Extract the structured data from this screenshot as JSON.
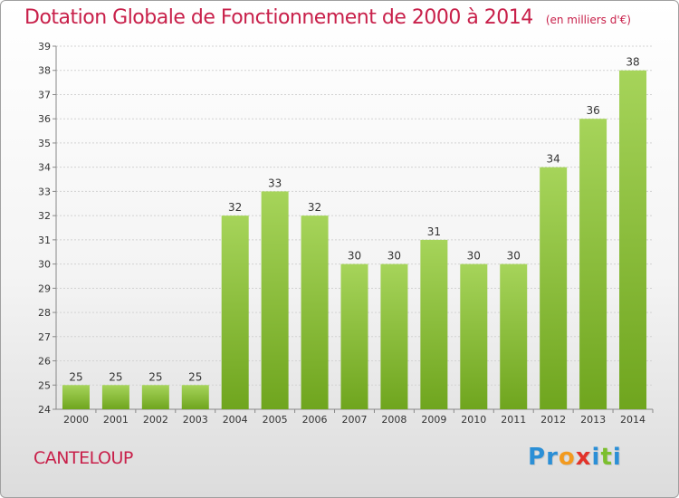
{
  "chart_data": {
    "type": "bar",
    "title": "Dotation Globale de Fonctionnement de 2000 à 2014",
    "subtitle": "(en milliers d'€)",
    "xlabel": "",
    "ylabel": "",
    "categories": [
      "2000",
      "2001",
      "2002",
      "2003",
      "2004",
      "2005",
      "2006",
      "2007",
      "2008",
      "2009",
      "2010",
      "2011",
      "2012",
      "2013",
      "2014"
    ],
    "values": [
      25,
      25,
      25,
      25,
      32,
      33,
      32,
      30,
      30,
      31,
      30,
      30,
      34,
      36,
      38
    ],
    "ylim": [
      24,
      39
    ],
    "yticks": [
      24,
      25,
      26,
      27,
      28,
      29,
      30,
      31,
      32,
      33,
      34,
      35,
      36,
      37,
      38,
      39
    ],
    "grid": true,
    "legend": "none",
    "bar_color_light": "#a6d45a",
    "bar_color_dark": "#6fa51e"
  },
  "footer": {
    "commune": "CANTELOUP",
    "logo_letters": [
      {
        "ch": "P",
        "color": "#2b8fd6"
      },
      {
        "ch": "r",
        "color": "#2b8fd6"
      },
      {
        "ch": "o",
        "color": "#f29a1f"
      },
      {
        "ch": "x",
        "color": "#e2332a"
      },
      {
        "ch": "i",
        "color": "#2b8fd6"
      },
      {
        "ch": "t",
        "color": "#7cbf2e"
      },
      {
        "ch": "i",
        "color": "#2b8fd6"
      }
    ]
  },
  "colors": {
    "title": "#c8204a",
    "grid": "#d2d2d2",
    "axis": "#888888"
  }
}
